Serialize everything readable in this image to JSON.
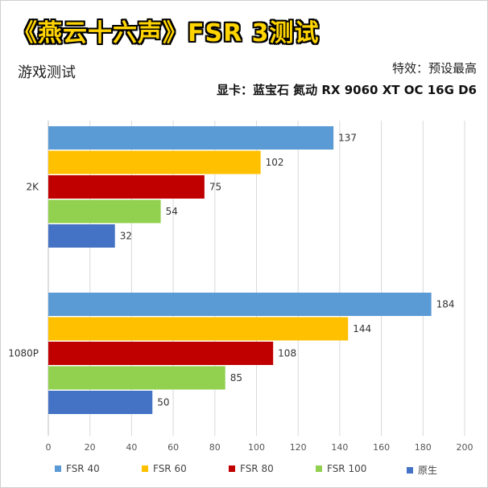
{
  "header": {
    "title": "《燕云十六声》FSR 3测试",
    "subtitle_left": "游戏测试",
    "subtitle_right": "特效：预设最高",
    "gpu": "显卡：蓝宝石 氮动 RX 9060 XT OC 16G D6"
  },
  "chart_data": {
    "type": "bar",
    "orientation": "horizontal",
    "categories": [
      "2K",
      "1080P"
    ],
    "series": [
      {
        "name": "FSR 40",
        "color": "#5b9bd5",
        "values": [
          137,
          184
        ]
      },
      {
        "name": "FSR 60",
        "color": "#ffc000",
        "values": [
          102,
          144
        ]
      },
      {
        "name": "FSR 80",
        "color": "#c00000",
        "values": [
          75,
          108
        ]
      },
      {
        "name": "FSR 100",
        "color": "#92d050",
        "values": [
          54,
          85
        ]
      },
      {
        "name": "原生",
        "color": "#4472c4",
        "values": [
          32,
          50
        ]
      }
    ],
    "xlim": [
      0,
      200
    ],
    "xticks": [
      0,
      20,
      40,
      60,
      80,
      100,
      120,
      140,
      160,
      180,
      200
    ],
    "grid": true,
    "legend": "bottom"
  }
}
